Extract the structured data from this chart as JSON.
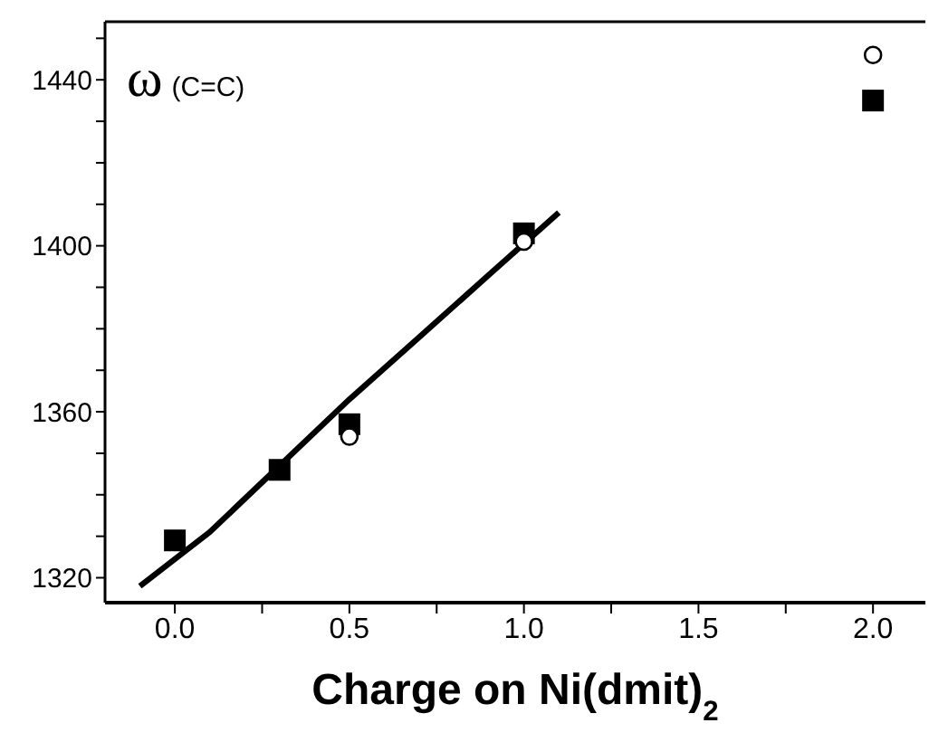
{
  "chart_data": {
    "type": "scatter",
    "xlabel": "Charge on Ni(dmit)$_{2}$",
    "annotations": [
      "ω (C=C)"
    ],
    "xlim": [
      -0.2,
      2.15
    ],
    "xticks": [
      {
        "value": 0,
        "label": "0.0"
      },
      {
        "value": 0.25,
        "label": null
      },
      {
        "value": 0.5,
        "label": "0.5"
      },
      {
        "value": 0.75,
        "label": null
      },
      {
        "value": 1,
        "label": "1.0"
      },
      {
        "value": 1.25,
        "label": null
      },
      {
        "value": 1.5,
        "label": "1.5"
      },
      {
        "value": 1.75,
        "label": null
      },
      {
        "value": 2,
        "label": "2.0"
      }
    ],
    "ylim": [
      1314,
      1454
    ],
    "yticks": [
      1320,
      {
        "value": 1330,
        "label": null
      },
      {
        "value": 1340,
        "label": null
      },
      {
        "value": 1350,
        "label": null
      },
      1360,
      {
        "value": 1370,
        "label": null
      },
      {
        "value": 1380,
        "label": null
      },
      {
        "value": 1390,
        "label": null
      },
      1400,
      {
        "value": 1410,
        "label": null
      },
      {
        "value": 1420,
        "label": null
      },
      {
        "value": 1430,
        "label": null
      },
      1440,
      {
        "value": 1450,
        "label": null
      }
    ],
    "grid": false,
    "legend": false,
    "series": [
      {
        "marker": "square",
        "color": "#000000",
        "x": [
          0,
          0.3,
          0.5,
          1.0,
          2.0
        ],
        "values": [
          1329,
          1346,
          1357,
          1403,
          1435
        ]
      },
      {
        "marker": "circle",
        "color": "#000000",
        "x": [
          0.5,
          1.0,
          2.0
        ],
        "values": [
          1354,
          1401,
          1446
        ]
      },
      {
        "type": "line",
        "marker": "none",
        "line_style": "solid",
        "color": "#000000",
        "x": [
          -0.1,
          0.1,
          0.3,
          0.5,
          0.7,
          0.9,
          1.1
        ],
        "values": [
          1318,
          1331,
          1347,
          1363,
          1378,
          1393,
          1408
        ]
      }
    ]
  }
}
